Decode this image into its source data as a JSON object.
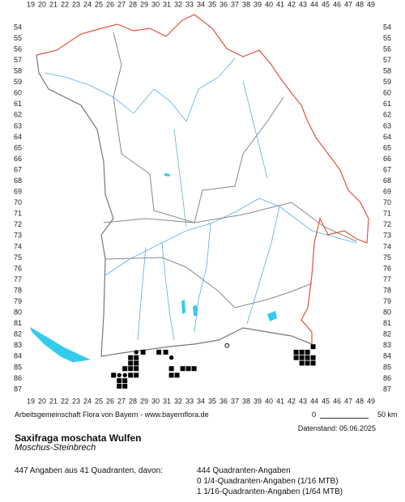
{
  "grid": {
    "columns": [
      19,
      20,
      21,
      22,
      23,
      24,
      25,
      26,
      27,
      28,
      29,
      30,
      31,
      32,
      33,
      34,
      35,
      36,
      37,
      38,
      39,
      40,
      41,
      42,
      43,
      44,
      45,
      46,
      47,
      48,
      49
    ],
    "rows": [
      54,
      55,
      56,
      57,
      58,
      59,
      60,
      61,
      62,
      63,
      64,
      65,
      66,
      67,
      68,
      69,
      70,
      71,
      72,
      73,
      74,
      75,
      76,
      77,
      78,
      79,
      80,
      81,
      82,
      83,
      84,
      85,
      86,
      87
    ]
  },
  "records": [
    {
      "x": 36.3,
      "y": 83.0,
      "symbol": "circle"
    },
    {
      "x": 43.9,
      "y": 83.1,
      "symbol": "square"
    },
    {
      "x": 42.4,
      "y": 83.6,
      "symbol": "square"
    },
    {
      "x": 42.9,
      "y": 83.6,
      "symbol": "square"
    },
    {
      "x": 43.4,
      "y": 83.6,
      "symbol": "square"
    },
    {
      "x": 42.4,
      "y": 84.1,
      "symbol": "square"
    },
    {
      "x": 42.9,
      "y": 84.1,
      "symbol": "square"
    },
    {
      "x": 43.4,
      "y": 84.1,
      "symbol": "square"
    },
    {
      "x": 43.9,
      "y": 84.1,
      "symbol": "square"
    },
    {
      "x": 42.9,
      "y": 84.6,
      "symbol": "square"
    },
    {
      "x": 43.4,
      "y": 84.6,
      "symbol": "square"
    },
    {
      "x": 43.9,
      "y": 84.6,
      "symbol": "square"
    },
    {
      "x": 28.3,
      "y": 83.6,
      "symbol": "dot"
    },
    {
      "x": 28.9,
      "y": 83.6,
      "symbol": "square"
    },
    {
      "x": 30.3,
      "y": 83.6,
      "symbol": "square"
    },
    {
      "x": 30.9,
      "y": 83.6,
      "symbol": "square"
    },
    {
      "x": 27.8,
      "y": 84.1,
      "symbol": "square"
    },
    {
      "x": 28.3,
      "y": 84.1,
      "symbol": "square"
    },
    {
      "x": 31.4,
      "y": 84.1,
      "symbol": "dot"
    },
    {
      "x": 27.8,
      "y": 84.6,
      "symbol": "square"
    },
    {
      "x": 28.3,
      "y": 84.6,
      "symbol": "square"
    },
    {
      "x": 27.3,
      "y": 85.1,
      "symbol": "square"
    },
    {
      "x": 27.8,
      "y": 85.1,
      "symbol": "square"
    },
    {
      "x": 28.3,
      "y": 85.1,
      "symbol": "square"
    },
    {
      "x": 31.4,
      "y": 85.1,
      "symbol": "square"
    },
    {
      "x": 32.4,
      "y": 85.1,
      "symbol": "square"
    },
    {
      "x": 32.9,
      "y": 85.1,
      "symbol": "square"
    },
    {
      "x": 33.4,
      "y": 85.1,
      "symbol": "square"
    },
    {
      "x": 26.3,
      "y": 85.7,
      "symbol": "square"
    },
    {
      "x": 26.8,
      "y": 85.7,
      "symbol": "dot"
    },
    {
      "x": 27.3,
      "y": 85.7,
      "symbol": "dot"
    },
    {
      "x": 27.8,
      "y": 85.7,
      "symbol": "square"
    },
    {
      "x": 28.3,
      "y": 85.7,
      "symbol": "square"
    },
    {
      "x": 31.4,
      "y": 85.7,
      "symbol": "square"
    },
    {
      "x": 31.9,
      "y": 85.7,
      "symbol": "square"
    },
    {
      "x": 26.8,
      "y": 86.2,
      "symbol": "square"
    },
    {
      "x": 27.3,
      "y": 86.2,
      "symbol": "square"
    },
    {
      "x": 26.8,
      "y": 86.7,
      "symbol": "square"
    },
    {
      "x": 27.3,
      "y": 86.7,
      "symbol": "square"
    }
  ],
  "footer": {
    "credit": "Arbeitsgemeinschaft Flora von Bayern - www.bayernflora.de",
    "scale_start": "0",
    "scale_end": "50 km",
    "date": "Datenstand: 05.06.2025"
  },
  "species": {
    "name": "Saxifraga moschata Wulfen",
    "common_name": "Moschus-Steinbrech"
  },
  "stats": {
    "summary": "447 Angaben aus 41 Quadranten, davon:",
    "lines": [
      "444 Quadranten-Angaben",
      "0 1/4-Quadranten-Angaben (1/16 MTB)",
      "1 1/16-Quadranten-Angaben (1/64 MTB)"
    ]
  }
}
